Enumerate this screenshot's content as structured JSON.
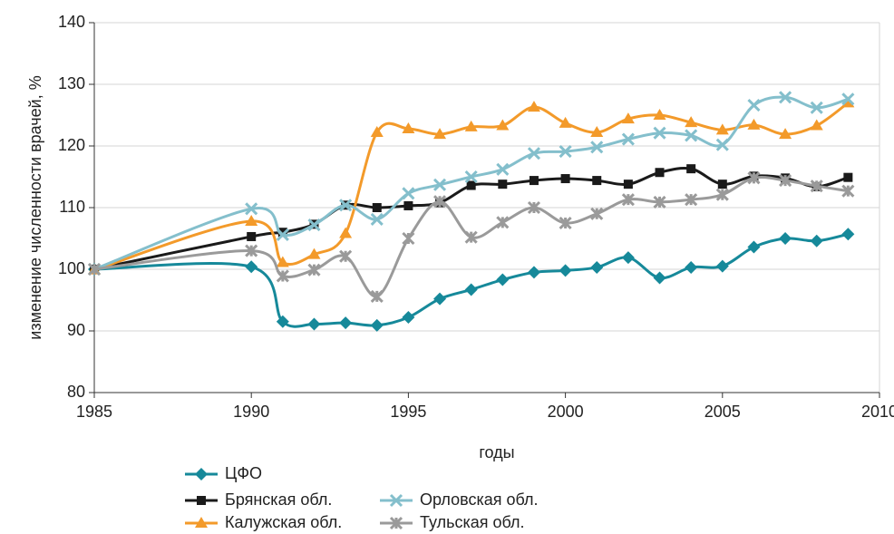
{
  "chart_data": {
    "type": "line",
    "x_label": "годы",
    "y_label": "изменение численности врачей, %",
    "x": [
      1985,
      1990,
      1991,
      1992,
      1993,
      1994,
      1995,
      1996,
      1997,
      1998,
      1999,
      2000,
      2001,
      2002,
      2003,
      2004,
      2005,
      2006,
      2007,
      2008,
      2009
    ],
    "xlim": [
      1985,
      2010
    ],
    "xticks": [
      1985,
      1990,
      1995,
      2000,
      2005,
      2010
    ],
    "ylim": [
      80,
      140
    ],
    "yticks": [
      80,
      90,
      100,
      110,
      120,
      130,
      140
    ],
    "grid": true,
    "legend_position": "bottom",
    "smooth": true,
    "series": [
      {
        "name": "ЦФО",
        "color": "#16899a",
        "marker": "diamond",
        "values": [
          100,
          100.4,
          91.5,
          91.1,
          91.3,
          90.9,
          92.2,
          95.2,
          96.7,
          98.3,
          99.5,
          99.8,
          100.3,
          101.9,
          98.6,
          100.3,
          100.5,
          103.6,
          105,
          104.6,
          105.7
        ]
      },
      {
        "name": "Брянская обл.",
        "color": "#1a1a1a",
        "marker": "square",
        "values": [
          100,
          105.3,
          106,
          107.3,
          110.4,
          110,
          110.3,
          110.8,
          113.6,
          113.8,
          114.4,
          114.7,
          114.4,
          113.8,
          115.7,
          116.3,
          113.8,
          115.1,
          114.8,
          113.4,
          114.9
        ]
      },
      {
        "name": "Калужская обл.",
        "color": "#f39a2a",
        "marker": "triangle",
        "values": [
          99.9,
          107.8,
          101.1,
          102.4,
          105.8,
          122.2,
          122.8,
          121.9,
          123.1,
          123.3,
          126.3,
          123.7,
          122.2,
          124.4,
          125,
          123.8,
          122.6,
          123.4,
          121.9,
          123.3,
          127
        ]
      },
      {
        "name": "Орловская обл.",
        "color": "#84bfcc",
        "marker": "x",
        "values": [
          100,
          109.8,
          105.6,
          107.2,
          110.4,
          108.1,
          112.3,
          113.7,
          115,
          116.2,
          118.8,
          119.1,
          119.8,
          121.1,
          122.1,
          121.7,
          120.2,
          126.6,
          127.9,
          126.2,
          127.6
        ]
      },
      {
        "name": "Тульская обл.",
        "color": "#9a9a9a",
        "marker": "star",
        "values": [
          100,
          103,
          98.9,
          99.9,
          102.1,
          95.6,
          105,
          111,
          105.2,
          107.6,
          110,
          107.5,
          109,
          111.3,
          110.9,
          111.3,
          112.1,
          114.8,
          114.4,
          113.5,
          112.7
        ]
      }
    ]
  }
}
